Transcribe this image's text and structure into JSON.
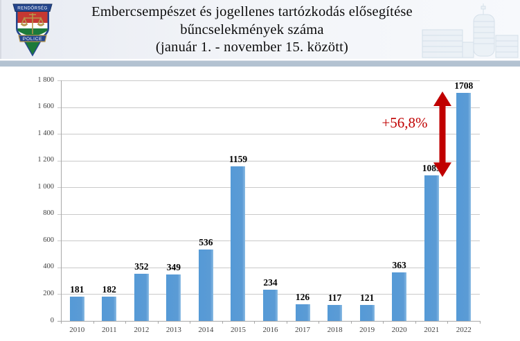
{
  "header": {
    "title_line1": "Embercsempészet és jogellenes tartózkodás elősegítése",
    "title_line2": "bűncselekmények száma",
    "title_line3": "(január 1. - november 15. között)",
    "logo": {
      "top_text": "RENDŐRSÉG",
      "bottom_text": "POLICE"
    }
  },
  "chart_data": {
    "type": "bar",
    "title": "",
    "xlabel": "",
    "ylabel": "",
    "categories": [
      "2010",
      "2011",
      "2012",
      "2013",
      "2014",
      "2015",
      "2016",
      "2017",
      "2018",
      "2019",
      "2020",
      "2021",
      "2022"
    ],
    "values": [
      181,
      182,
      352,
      349,
      536,
      1159,
      234,
      126,
      117,
      121,
      363,
      1089,
      1708
    ],
    "data_labels_shown": true,
    "ylim": [
      0,
      1800
    ],
    "ytick_step": 200,
    "ytick_labels": [
      "0",
      "200",
      "400",
      "600",
      "800",
      "1 000",
      "1 200",
      "1 400",
      "1 600",
      "1 800"
    ],
    "grid": true,
    "legend": "none",
    "bar_color": "#5b9bd5",
    "annotation": {
      "label": "+56,8%",
      "color": "#c00000",
      "from_value": 1089,
      "to_value": 1708,
      "between_categories": [
        "2021",
        "2022"
      ]
    }
  },
  "colors": {
    "bar": "#5b9bd5",
    "annotation_red": "#c00000",
    "divider_band": "#b3c2d1",
    "header_background": "#edf0f6",
    "gridline": "#c9c9c9",
    "logo_navy": "#24468e",
    "logo_red": "#c53832",
    "logo_green": "#1c7a3a",
    "logo_gold": "#b5954a"
  }
}
